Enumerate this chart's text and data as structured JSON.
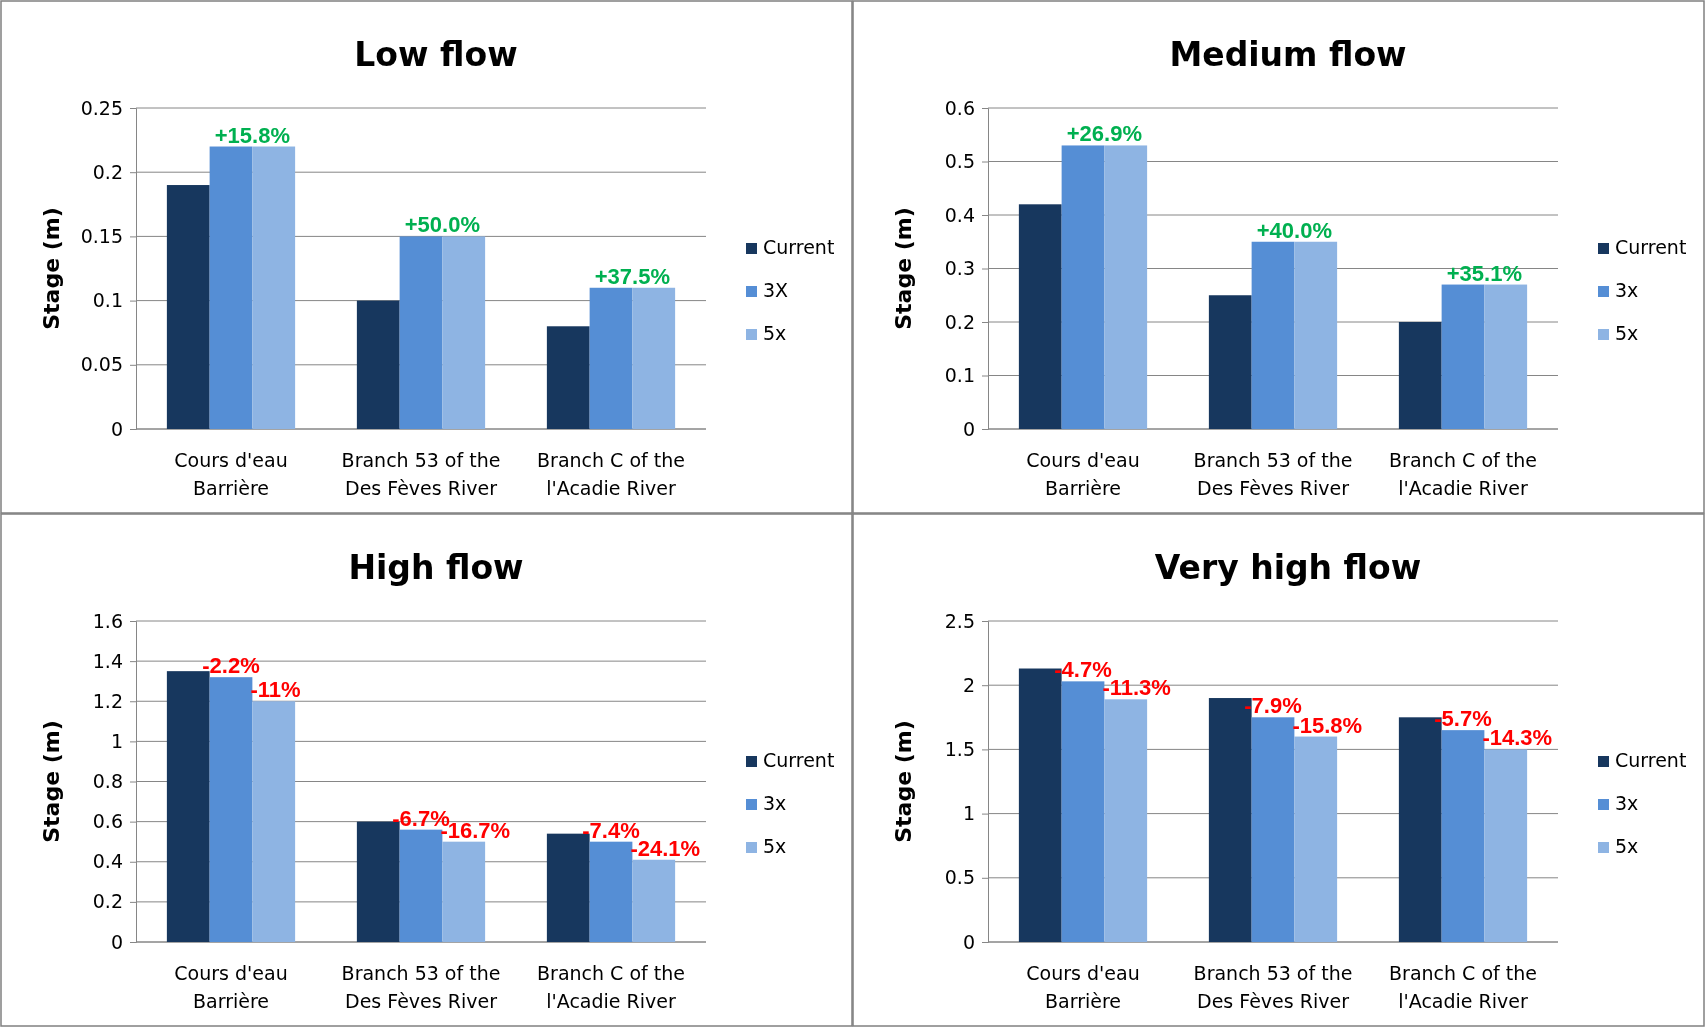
{
  "chart_data": [
    {
      "type": "bar",
      "title": "Low flow",
      "ylabel": "Stage (m)",
      "categories": [
        "Cours d'eau Barrière",
        "Branch 53 of the Des Fèves River",
        "Branch C of the l'Acadie River"
      ],
      "series": [
        {
          "name": "Current",
          "color": "#17375e",
          "values": [
            0.19,
            0.1,
            0.08
          ]
        },
        {
          "name": "3X",
          "color": "#558ed5",
          "values": [
            0.22,
            0.15,
            0.11
          ]
        },
        {
          "name": "5x",
          "color": "#8eb4e3",
          "values": [
            0.22,
            0.15,
            0.11
          ]
        }
      ],
      "ylim": [
        0,
        0.25
      ],
      "yticks": [
        0,
        0.05,
        0.1,
        0.15,
        0.2,
        0.25
      ],
      "grid": "y",
      "legend": "right",
      "annotations": [
        {
          "text": "+15.8%",
          "x": "Cours d'eau Barrière",
          "y": 0.22
        },
        {
          "text": "+50.0%",
          "x": "Branch 53 of the Des Fèves River",
          "y": 0.15
        },
        {
          "text": "+37.5%",
          "x": "Branch C of the l'Acadie River",
          "y": 0.11
        }
      ]
    },
    {
      "type": "bar",
      "title": "Medium flow",
      "ylabel": "Stage (m)",
      "categories": [
        "Cours d'eau Barrière",
        "Branch 53 of the Des Fèves River",
        "Branch C of the l'Acadie River"
      ],
      "series": [
        {
          "name": "Current",
          "color": "#17375e",
          "values": [
            0.42,
            0.25,
            0.2
          ]
        },
        {
          "name": "3x",
          "color": "#558ed5",
          "values": [
            0.53,
            0.35,
            0.27
          ]
        },
        {
          "name": "5x",
          "color": "#8eb4e3",
          "values": [
            0.53,
            0.35,
            0.27
          ]
        }
      ],
      "ylim": [
        0,
        0.6
      ],
      "yticks": [
        0,
        0.1,
        0.2,
        0.3,
        0.4,
        0.5,
        0.6
      ],
      "grid": "y",
      "legend": "right",
      "annotations": [
        {
          "text": "+26.9%",
          "x": "Cours d'eau Barrière",
          "y": 0.53
        },
        {
          "text": "+40.0%",
          "x": "Branch 53 of the Des Fèves River",
          "y": 0.35
        },
        {
          "text": "+35.1%",
          "x": "Branch C of the l'Acadie River",
          "y": 0.27
        }
      ]
    },
    {
      "type": "bar",
      "title": "High flow",
      "ylabel": "Stage (m)",
      "categories": [
        "Cours d'eau Barrière",
        "Branch 53 of the Des Fèves River",
        "Branch C of the l'Acadie River"
      ],
      "series": [
        {
          "name": "Current",
          "color": "#17375e",
          "values": [
            1.35,
            0.6,
            0.54
          ]
        },
        {
          "name": "3x",
          "color": "#558ed5",
          "values": [
            1.32,
            0.56,
            0.5
          ]
        },
        {
          "name": "5x",
          "color": "#8eb4e3",
          "values": [
            1.2,
            0.5,
            0.41
          ]
        }
      ],
      "ylim": [
        0,
        1.6
      ],
      "yticks": [
        0,
        0.2,
        0.4,
        0.6,
        0.8,
        1,
        1.2,
        1.4,
        1.6
      ],
      "grid": "y",
      "legend": "right",
      "annotations": [
        {
          "text": "-2.2%",
          "x": "Cours d'eau Barrière",
          "y": 1.32
        },
        "-11%",
        {
          "text": "-6.7%",
          "x": "Branch 53 of the Des Fèves River",
          "y": 0.56
        },
        "-16.7%",
        {
          "text": "-7.4%",
          "x": "Branch C of the l'Acadie River",
          "y": 0.5
        },
        "-24.1%"
      ]
    },
    {
      "type": "bar",
      "title": "Very high flow",
      "ylabel": "Stage (m)",
      "categories": [
        "Cours d'eau Barrière",
        "Branch 53 of the Des Fèves River",
        "Branch C of the l'Acadie River"
      ],
      "series": [
        {
          "name": "Current",
          "color": "#17375e",
          "values": [
            2.13,
            1.9,
            1.75
          ]
        },
        {
          "name": "3x",
          "color": "#558ed5",
          "values": [
            2.03,
            1.75,
            1.65
          ]
        },
        {
          "name": "5x",
          "color": "#8eb4e3",
          "values": [
            1.89,
            1.6,
            1.5
          ]
        }
      ],
      "ylim": [
        0,
        2.5
      ],
      "yticks": [
        0,
        0.5,
        1,
        1.5,
        2,
        2.5
      ],
      "grid": "y",
      "legend": "right",
      "annotations": [
        {
          "text": "-4.7%",
          "x": "Cours d'eau Barrière",
          "y": 2.03
        },
        "-11.3%",
        {
          "text": "-7.9%",
          "x": "Branch 53 of the Des Fèves River",
          "y": 1.75
        },
        "-15.8%",
        {
          "text": "-5.7%",
          "x": "Branch C of the l'Acadie River",
          "y": 1.65
        },
        "-14.3%"
      ]
    }
  ]
}
